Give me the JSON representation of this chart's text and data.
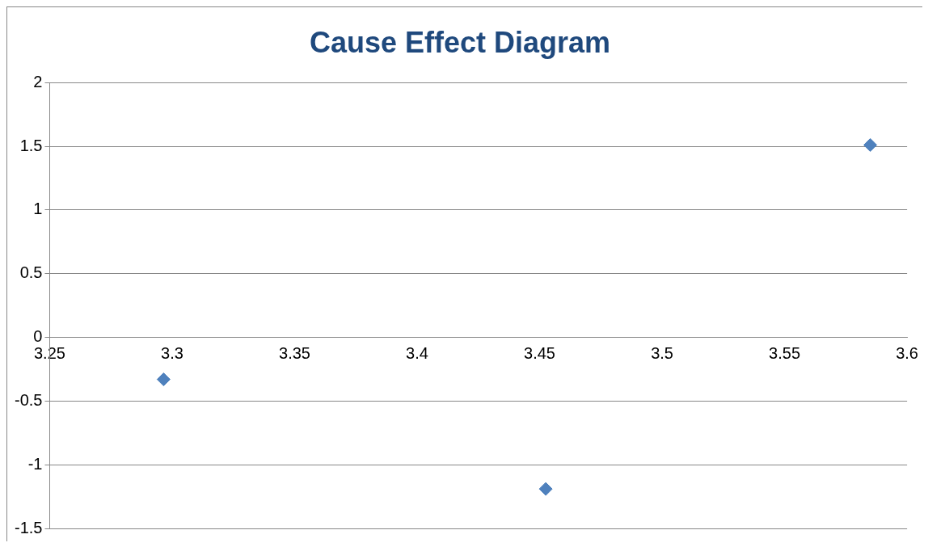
{
  "chart_data": {
    "type": "scatter",
    "title": "Cause Effect Diagram",
    "x": [
      3.2965,
      3.4525,
      3.585
    ],
    "series": [
      {
        "color": "#4f81bd",
        "values": [
          -0.33,
          -1.19,
          1.51
        ]
      }
    ],
    "xlim": [
      3.25,
      3.6
    ],
    "xticks": [
      3.25,
      3.3,
      3.35,
      3.4,
      3.45,
      3.5,
      3.55,
      3.6
    ],
    "ylim": [
      -1.5,
      2
    ],
    "yticks": [
      -1.5,
      -1,
      -0.5,
      0,
      0.5,
      1,
      1.5,
      2
    ],
    "grid": "y",
    "legend": false,
    "marker": "diamond"
  }
}
